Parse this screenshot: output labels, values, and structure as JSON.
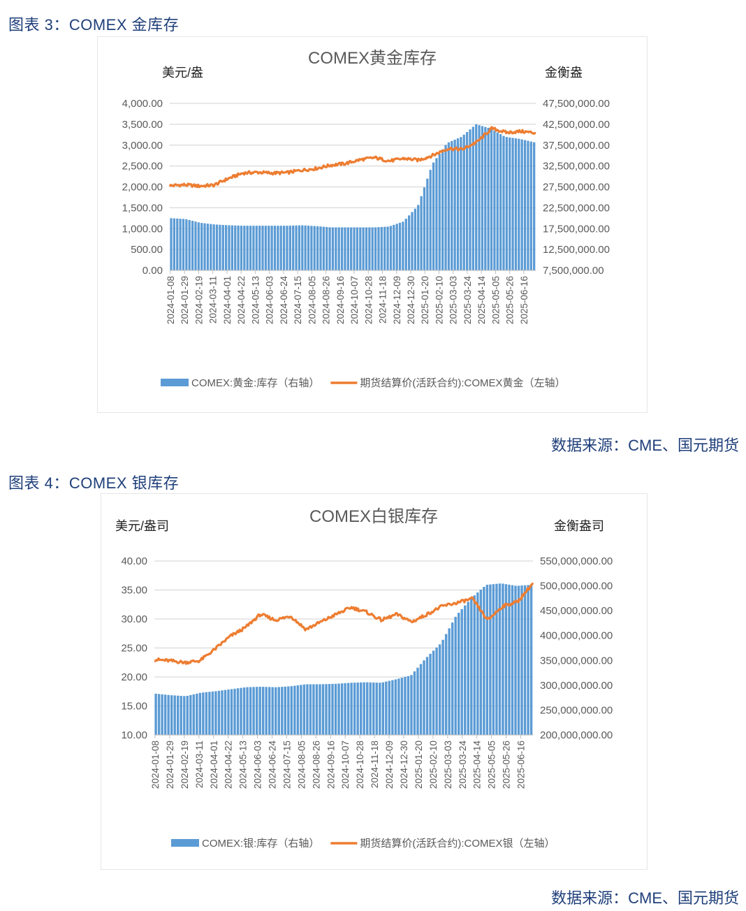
{
  "figure3": {
    "label": "图表 3：COMEX 金库存",
    "source": "数据来源：CME、国元期货"
  },
  "figure4": {
    "label": "图表 4：COMEX 银库存",
    "source": "数据来源：CME、国元期货"
  },
  "colors": {
    "bar": "#5b9bd5",
    "line": "#ed7d31",
    "title": "#1f3f7a",
    "grid": "#d9d9d9"
  },
  "chart_data": [
    {
      "type": "bar+line",
      "title": "COMEX黄金库存",
      "ylabel_left": "美元/盎",
      "ylabel_right": "金衡盎",
      "yticks_left": [
        "4,000.00",
        "3,500.00",
        "3,000.00",
        "2,500.00",
        "2,000.00",
        "1,500.00",
        "1,000.00",
        "500.00",
        "0.00"
      ],
      "yticks_right": [
        "47,500,000.00",
        "42,500,000.00",
        "37,500,000.00",
        "32,500,000.00",
        "27,500,000.00",
        "22,500,000.00",
        "17,500,000.00",
        "12,500,000.00",
        "7,500,000.00"
      ],
      "ylim_left": [
        0,
        4000
      ],
      "ylim_right": [
        7500000,
        47500000
      ],
      "grid": true,
      "legend_position": "bottom",
      "categories": [
        "2024-01-08",
        "2024-01-29",
        "2024-02-19",
        "2024-03-11",
        "2024-04-01",
        "2024-04-22",
        "2024-05-13",
        "2024-06-03",
        "2024-06-24",
        "2024-07-15",
        "2024-08-05",
        "2024-08-26",
        "2024-09-16",
        "2024-10-07",
        "2024-10-28",
        "2024-11-18",
        "2024-12-09",
        "2024-12-30",
        "2025-01-20",
        "2025-02-10",
        "2025-03-03",
        "2025-03-24",
        "2025-04-14",
        "2025-05-05",
        "2025-05-26",
        "2025-06-16"
      ],
      "series": [
        {
          "name": "COMEX:黄金:库存（右轴）",
          "axis": "right",
          "kind": "bar",
          "values": [
            20000000,
            19800000,
            18900000,
            18500000,
            18300000,
            18200000,
            18200000,
            18200000,
            18200000,
            18300000,
            18100000,
            17800000,
            17800000,
            17800000,
            17800000,
            18000000,
            19200000,
            23000000,
            33000000,
            38000000,
            39500000,
            42500000,
            41500000,
            39500000,
            39000000,
            38200000
          ]
        },
        {
          "name": "期货结算价(活跃合约):COMEX黄金（左轴）",
          "axis": "left",
          "kind": "line",
          "values": [
            2030,
            2050,
            2020,
            2040,
            2200,
            2330,
            2350,
            2330,
            2340,
            2400,
            2440,
            2520,
            2560,
            2650,
            2700,
            2620,
            2680,
            2640,
            2760,
            2920,
            2900,
            3080,
            3400,
            3300,
            3330,
            3290
          ]
        }
      ],
      "legend": [
        "COMEX:黄金:库存（右轴）",
        "期货结算价(活跃合约):COMEX黄金（左轴）"
      ]
    },
    {
      "type": "bar+line",
      "title": "COMEX白银库存",
      "ylabel_left": "美元/盎司",
      "ylabel_right": "金衡盎司",
      "yticks_left": [
        "40.00",
        "35.00",
        "30.00",
        "25.00",
        "20.00",
        "15.00",
        "10.00"
      ],
      "yticks_right": [
        "550,000,000.00",
        "500,000,000.00",
        "450,000,000.00",
        "400,000,000.00",
        "350,000,000.00",
        "300,000,000.00",
        "250,000,000.00",
        "200,000,000.00"
      ],
      "ylim_left": [
        10,
        40
      ],
      "ylim_right": [
        200000000,
        550000000
      ],
      "grid": true,
      "legend_position": "bottom",
      "categories": [
        "2024-01-08",
        "2024-01-29",
        "2024-02-19",
        "2024-03-11",
        "2024-04-01",
        "2024-04-22",
        "2024-05-13",
        "2024-06-03",
        "2024-06-24",
        "2024-07-15",
        "2024-08-05",
        "2024-08-26",
        "2024-09-16",
        "2024-10-07",
        "2024-10-28",
        "2024-11-18",
        "2024-12-09",
        "2024-12-30",
        "2025-01-20",
        "2025-02-10",
        "2025-03-03",
        "2025-03-24",
        "2025-04-14",
        "2025-05-05",
        "2025-05-26",
        "2025-06-16"
      ],
      "series": [
        {
          "name": "COMEX:银:库存（右轴）",
          "axis": "right",
          "kind": "bar",
          "values": [
            283000000,
            280000000,
            278000000,
            285000000,
            288000000,
            292000000,
            296000000,
            297000000,
            296000000,
            298000000,
            302000000,
            302000000,
            303000000,
            305000000,
            306000000,
            305000000,
            312000000,
            320000000,
            355000000,
            385000000,
            440000000,
            475000000,
            502000000,
            505000000,
            500000000,
            502000000
          ]
        },
        {
          "name": "期货结算价(活跃合约):COMEX银（左轴）",
          "axis": "left",
          "kind": "line",
          "values": [
            23.0,
            22.8,
            22.5,
            22.8,
            24.8,
            27.0,
            28.5,
            30.8,
            29.8,
            30.5,
            28.2,
            29.5,
            30.8,
            32.0,
            31.2,
            29.8,
            30.8,
            29.5,
            30.8,
            32.2,
            32.8,
            33.5,
            29.8,
            32.2,
            33.0,
            36.2
          ]
        }
      ],
      "legend": [
        "COMEX:银:库存（右轴）",
        "期货结算价(活跃合约):COMEX银（左轴）"
      ]
    }
  ]
}
